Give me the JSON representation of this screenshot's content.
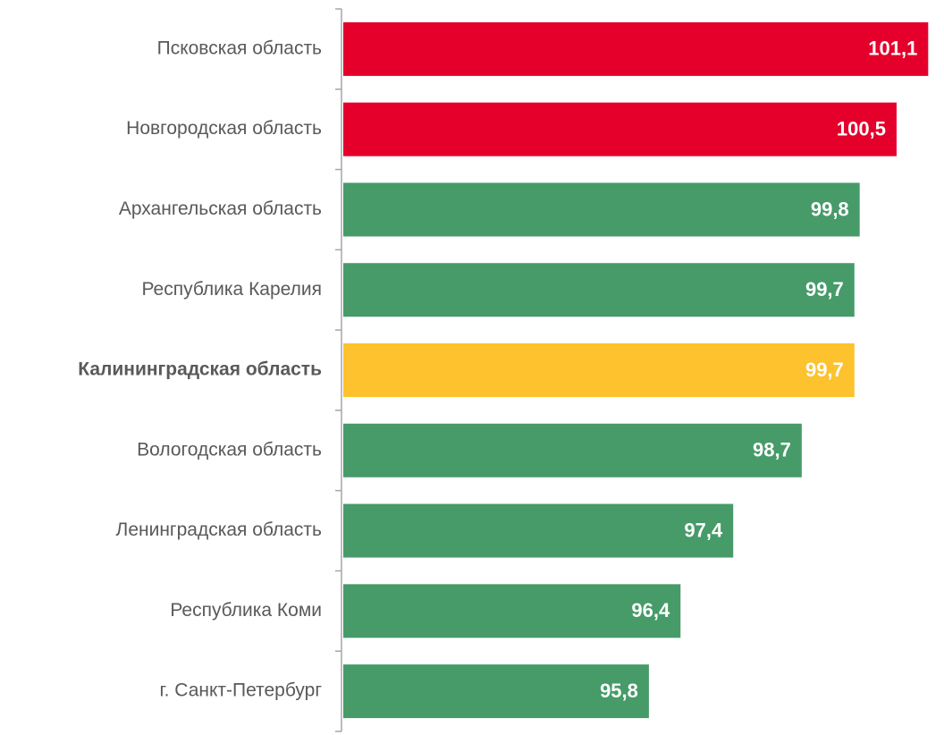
{
  "chart_data": {
    "type": "barh",
    "categories": [
      "Псковская область",
      "Новгородская область",
      "Архангельская область",
      "Республика Карелия",
      "Калининградская область",
      "Вологодская область",
      "Ленинградская область",
      "Республика Коми",
      "г. Санкт-Петербург"
    ],
    "values": [
      101.1,
      100.5,
      99.8,
      99.7,
      99.7,
      98.7,
      97.4,
      96.4,
      95.8
    ],
    "value_labels": [
      "101,1",
      "100,5",
      "99,8",
      "99,7",
      "99,7",
      "98,7",
      "97,4",
      "96,4",
      "95,8"
    ],
    "colors": [
      "#e4002b",
      "#e4002b",
      "#469b69",
      "#469b69",
      "#fdc22d",
      "#469b69",
      "#469b69",
      "#469b69",
      "#469b69"
    ],
    "highlight": 4,
    "xlim": [
      90,
      101.4
    ]
  }
}
